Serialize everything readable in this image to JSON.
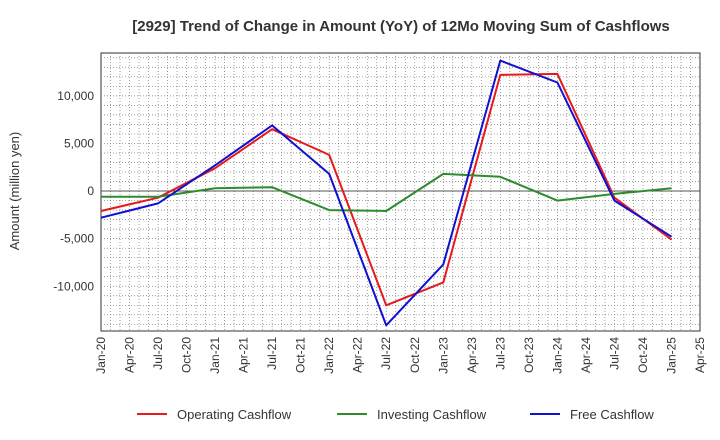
{
  "chart_data": {
    "type": "line",
    "title": "[2929]  Trend of Change in Amount (YoY) of 12Mo Moving Sum of Cashflows",
    "xlabel": "",
    "ylabel": "Amount (million yen)",
    "ylim": [
      -14700,
      14500
    ],
    "yticks": [
      10000,
      5000,
      0,
      -5000,
      -10000
    ],
    "ytick_labels": [
      "10,000",
      "5,000",
      "0",
      "-5,000",
      "-10,000"
    ],
    "x_ticks": [
      "Jan-20",
      "Apr-20",
      "Jul-20",
      "Oct-20",
      "Jan-21",
      "Apr-21",
      "Jul-21",
      "Oct-21",
      "Jan-22",
      "Apr-22",
      "Jul-22",
      "Oct-22",
      "Jan-23",
      "Apr-23",
      "Jul-23",
      "Oct-23",
      "Jan-24",
      "Apr-24",
      "Jul-24",
      "Oct-24",
      "Jan-25",
      "Apr-25"
    ],
    "categories": [
      "Jan-20",
      "Jul-20",
      "Jan-21",
      "Jul-21",
      "Jan-22",
      "Jul-22",
      "Jan-23",
      "Jul-23",
      "Jan-24",
      "Jul-24",
      "Jan-25"
    ],
    "grid": true,
    "legend_position": "bottom",
    "series": [
      {
        "name": "Operating Cashflow",
        "color": "#e41a1c",
        "values": [
          -2100,
          -700,
          2400,
          6500,
          3800,
          -12000,
          -9600,
          12200,
          12300,
          -700,
          -5100
        ]
      },
      {
        "name": "Investing Cashflow",
        "color": "#2e8b2e",
        "values": [
          -600,
          -600,
          300,
          400,
          -2000,
          -2100,
          1800,
          1500,
          -1000,
          -300,
          300
        ]
      },
      {
        "name": "Free Cashflow",
        "color": "#1010d0",
        "values": [
          -2800,
          -1300,
          2700,
          6900,
          1800,
          -14100,
          -7700,
          13700,
          11400,
          -1000,
          -4800
        ]
      }
    ]
  }
}
